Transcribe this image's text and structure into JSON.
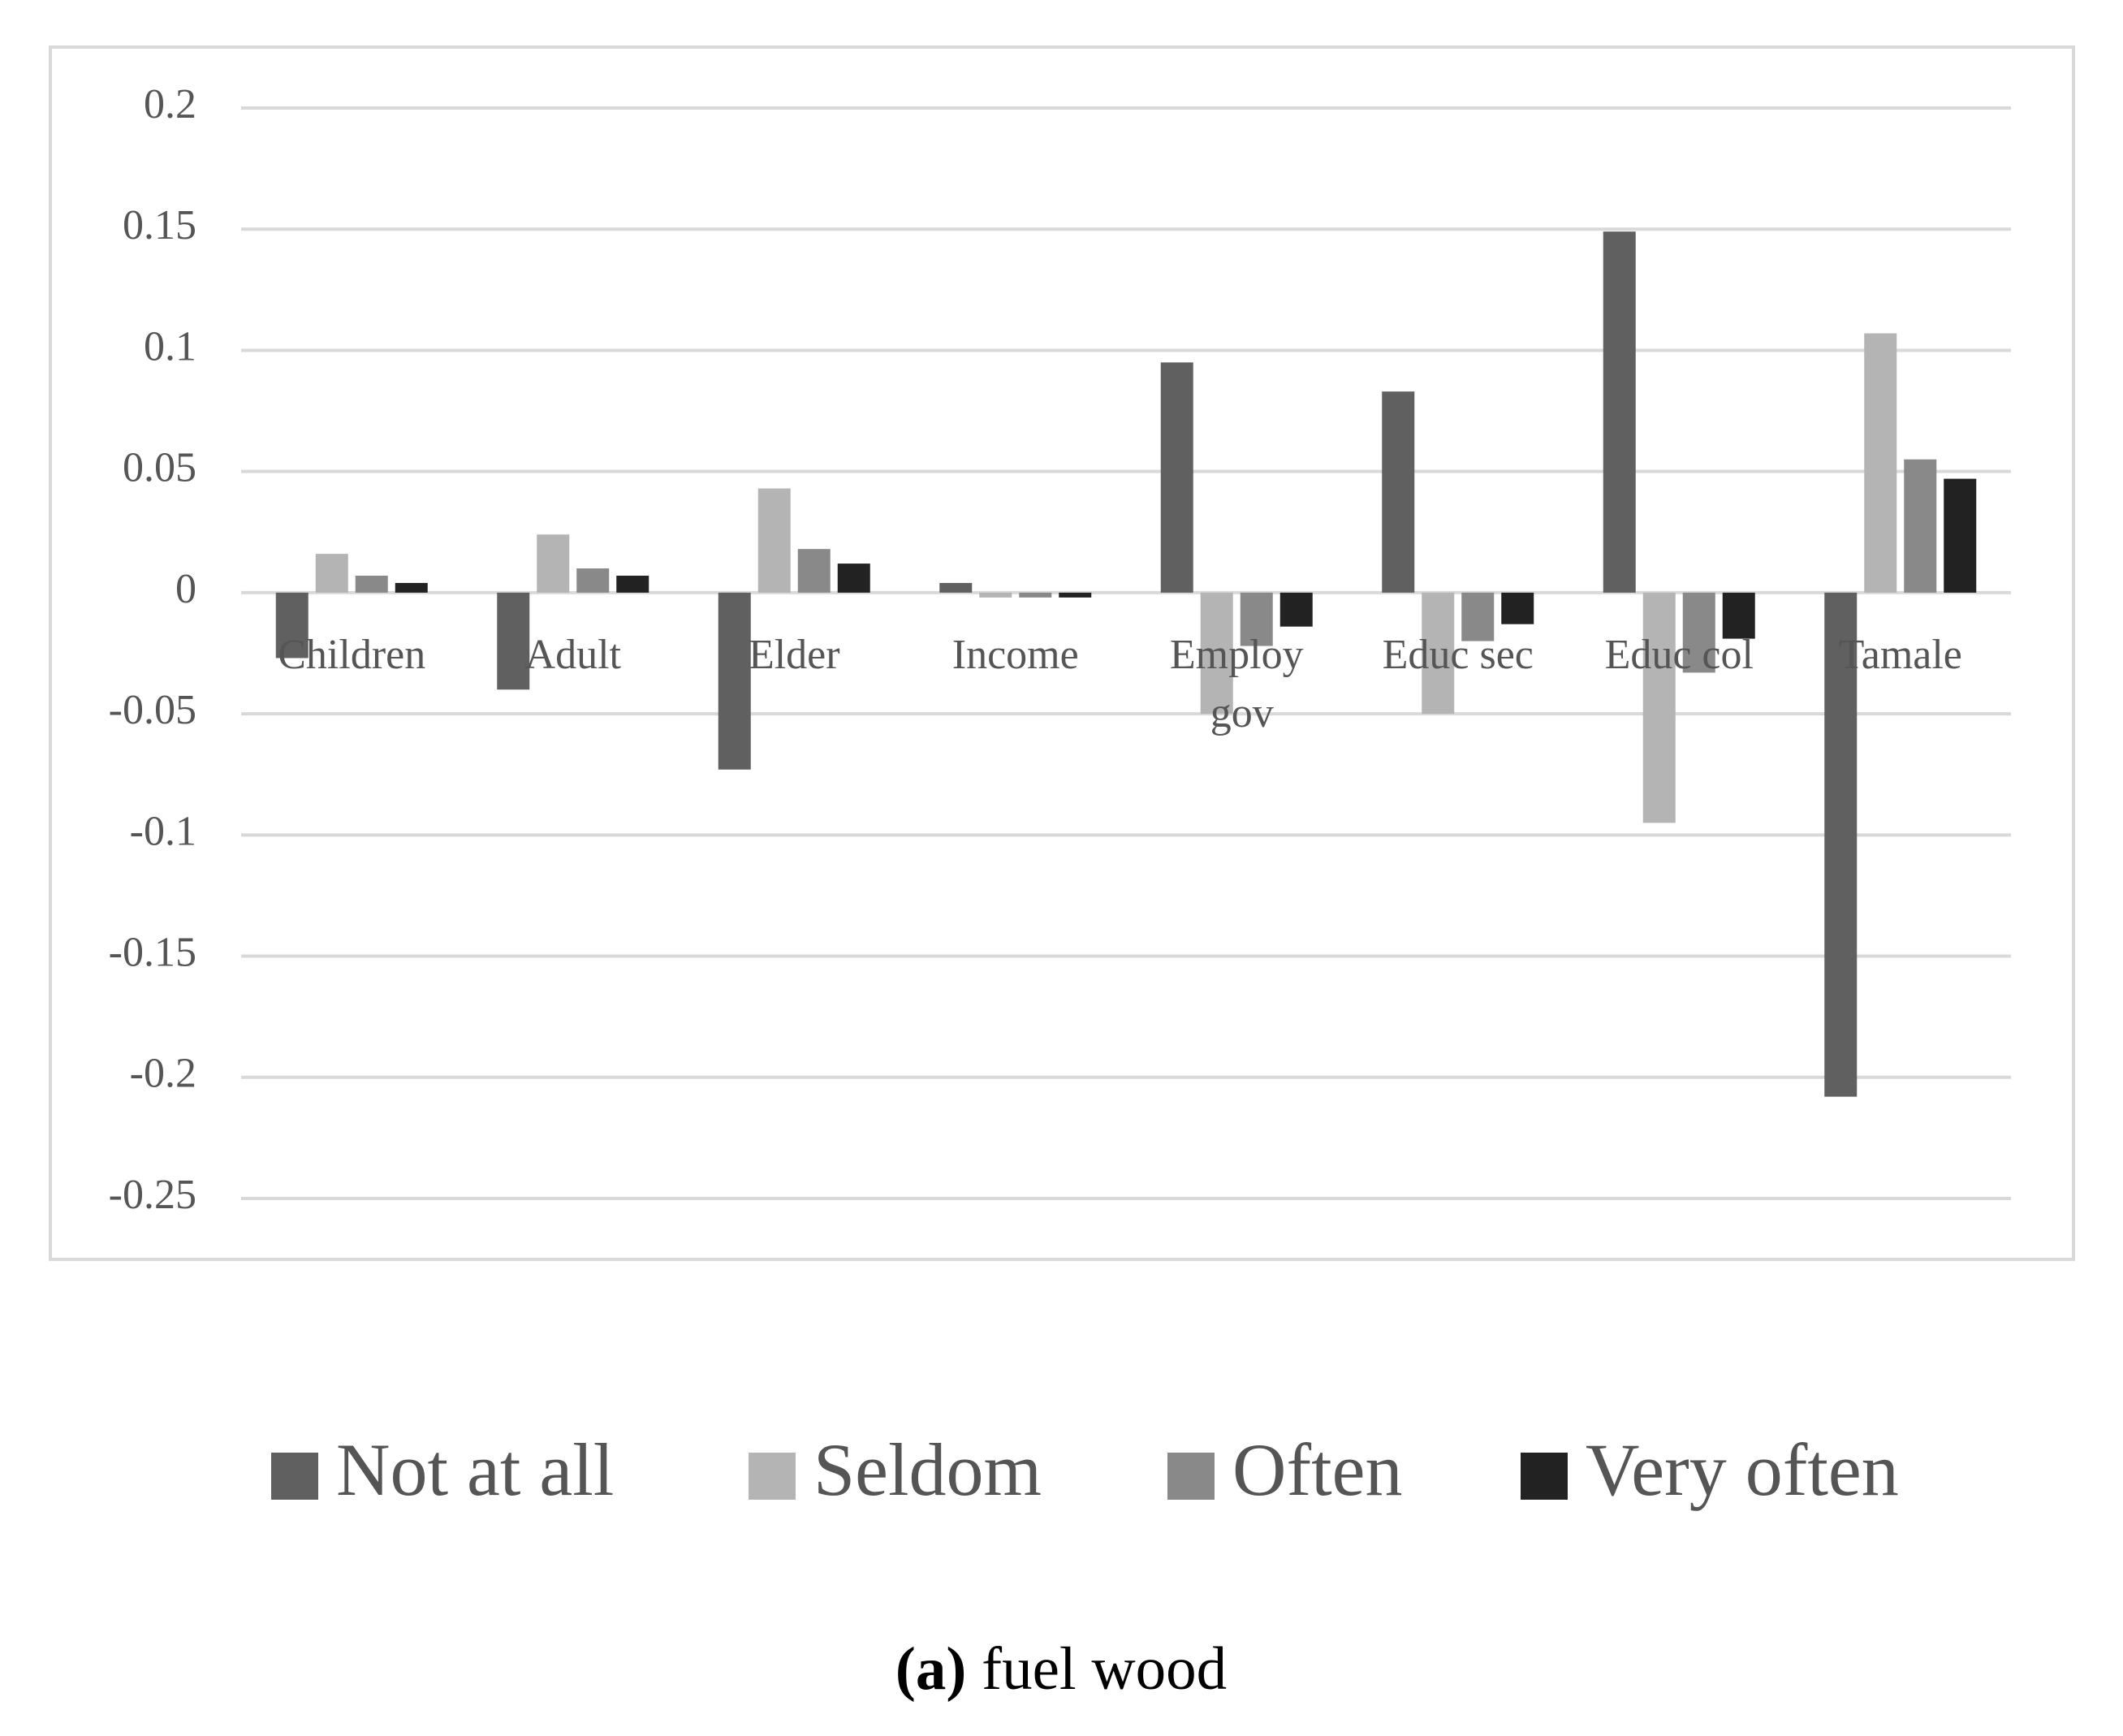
{
  "chart_data": {
    "type": "bar",
    "categories": [
      "Children",
      "Adult",
      "Elder",
      "Income",
      "Employ gov",
      "Educ sec",
      "Educ col",
      "Tamale"
    ],
    "series": [
      {
        "name": "Not at all",
        "color": "#606060",
        "values": [
          -0.027,
          -0.04,
          -0.073,
          0.004,
          0.095,
          0.083,
          0.149,
          -0.208
        ]
      },
      {
        "name": "Seldom",
        "color": "#b4b4b4",
        "values": [
          0.016,
          0.024,
          0.043,
          -0.002,
          -0.05,
          -0.05,
          -0.095,
          0.107
        ]
      },
      {
        "name": "Often",
        "color": "#898989",
        "values": [
          0.007,
          0.01,
          0.018,
          -0.002,
          -0.022,
          -0.02,
          -0.033,
          0.055
        ]
      },
      {
        "name": "Very often",
        "color": "#222222",
        "values": [
          0.004,
          0.007,
          0.012,
          -0.002,
          -0.014,
          -0.013,
          -0.019,
          0.047
        ]
      }
    ],
    "ylim": [
      -0.25,
      0.2
    ],
    "yticks": [
      0.2,
      0.15,
      0.1,
      0.05,
      0,
      -0.05,
      -0.1,
      -0.15,
      -0.2,
      -0.25
    ],
    "grid": true,
    "legend": "bottom",
    "caption_label": "(a)",
    "caption": "fuel wood"
  }
}
